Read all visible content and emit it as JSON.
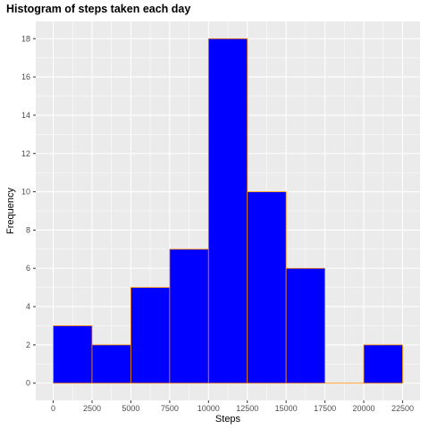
{
  "chart_data": {
    "type": "bar",
    "title": "Histogram of steps taken each day",
    "xlabel": "Steps",
    "ylabel": "Frequency",
    "bin_width": 2500,
    "bins": [
      {
        "start": 0,
        "end": 2500,
        "count": 3
      },
      {
        "start": 2500,
        "end": 5000,
        "count": 2
      },
      {
        "start": 5000,
        "end": 7500,
        "count": 5
      },
      {
        "start": 7500,
        "end": 10000,
        "count": 7
      },
      {
        "start": 10000,
        "end": 12500,
        "count": 18
      },
      {
        "start": 12500,
        "end": 15000,
        "count": 10
      },
      {
        "start": 15000,
        "end": 17500,
        "count": 6
      },
      {
        "start": 17500,
        "end": 20000,
        "count": 0
      },
      {
        "start": 20000,
        "end": 22500,
        "count": 2
      }
    ],
    "x_ticks": [
      "0",
      "2500",
      "5000",
      "7500",
      "10000",
      "12500",
      "15000",
      "17500",
      "20000",
      "22500"
    ],
    "y_ticks": [
      "0",
      "2",
      "4",
      "6",
      "8",
      "10",
      "12",
      "14",
      "16",
      "18"
    ],
    "xlim": [
      -1125,
      23625
    ],
    "ylim": [
      -0.9,
      18.9
    ],
    "grid": true,
    "colors": {
      "bar_fill": "#0000ff",
      "bar_outline": "#ff8c00",
      "panel_background": "#ebebeb",
      "grid": "#ffffff"
    }
  }
}
